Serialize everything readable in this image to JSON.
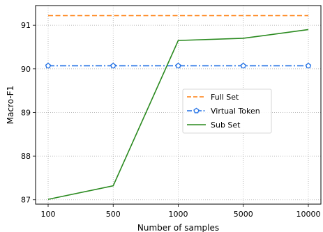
{
  "chart_data": {
    "type": "line",
    "categories": [
      "100",
      "500",
      "1000",
      "5000",
      "10000"
    ],
    "xlabel": "Number of samples",
    "ylabel": "Macro-F1",
    "ylim": [
      86.9,
      91.45
    ],
    "yticks": [
      87,
      88,
      89,
      90,
      91
    ],
    "grid": true,
    "legend_position": "center-right",
    "series": [
      {
        "name": "Full Set",
        "values": [
          91.22,
          91.22,
          91.22,
          91.22,
          91.22
        ],
        "color": "#ff7f0e",
        "style": "dashed",
        "marker": "none"
      },
      {
        "name": "Virtual Token",
        "values": [
          90.07,
          90.07,
          90.07,
          90.07,
          90.07
        ],
        "color": "#1f6fe5",
        "style": "dashdot",
        "marker": "pentagon"
      },
      {
        "name": "Sub Set",
        "values": [
          87.01,
          87.32,
          90.65,
          90.7,
          90.9
        ],
        "color": "#2a8a1f",
        "style": "solid",
        "marker": "none"
      }
    ]
  }
}
